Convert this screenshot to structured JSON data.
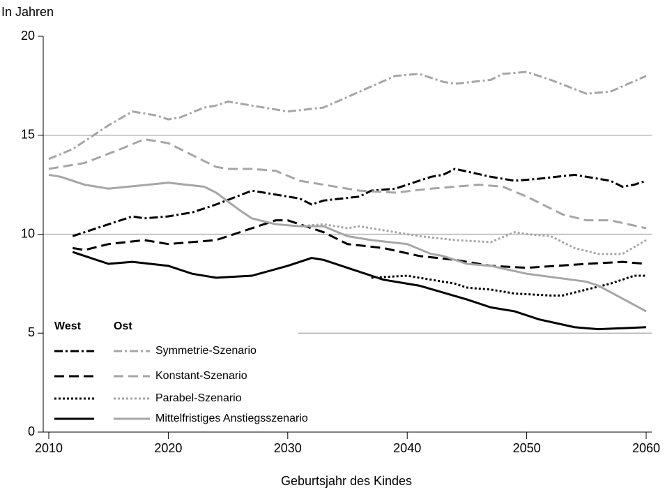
{
  "chart_data": {
    "type": "line",
    "y_label": "In Jahren",
    "x_label": "Geburtsjahr des Kindes",
    "xlim": [
      2010,
      2060
    ],
    "ylim": [
      0,
      20
    ],
    "xticks": [
      2010,
      2020,
      2030,
      2040,
      2050,
      2060
    ],
    "yticks": [
      0,
      5,
      10,
      15,
      20
    ],
    "grid": true,
    "legend_headers": [
      "West",
      "Ost"
    ],
    "series": [
      {
        "name": "Symmetrie-Szenario",
        "lines": [
          {
            "color": "#000000",
            "dash": "dash-dot",
            "x": [
              2012,
              2015,
              2017,
              2018,
              2020,
              2022,
              2024,
              2027,
              2029,
              2031,
              2032,
              2033,
              2036,
              2037,
              2039,
              2042,
              2043,
              2044,
              2047,
              2049,
              2051,
              2054,
              2057,
              2058,
              2059,
              2060
            ],
            "values": [
              9.9,
              10.5,
              10.9,
              10.8,
              10.9,
              11.1,
              11.5,
              12.2,
              12.0,
              11.8,
              11.5,
              11.7,
              11.9,
              12.2,
              12.3,
              12.9,
              13.0,
              13.3,
              12.9,
              12.7,
              12.8,
              13.0,
              12.7,
              12.4,
              12.5,
              12.7
            ]
          },
          {
            "color": "#a6a6a6",
            "dash": "dash-dot",
            "x": [
              2010,
              2012,
              2015,
              2017,
              2019,
              2020,
              2021,
              2023,
              2024,
              2025,
              2030,
              2033,
              2036,
              2039,
              2041,
              2043,
              2044,
              2047,
              2048,
              2050,
              2052,
              2055,
              2057,
              2060
            ],
            "values": [
              13.8,
              14.3,
              15.5,
              16.2,
              16.0,
              15.8,
              15.9,
              16.4,
              16.5,
              16.7,
              16.2,
              16.4,
              17.2,
              18.0,
              18.1,
              17.7,
              17.6,
              17.8,
              18.1,
              18.2,
              17.8,
              17.1,
              17.2,
              18.0
            ]
          }
        ]
      },
      {
        "name": "Konstant-Szenario",
        "lines": [
          {
            "color": "#000000",
            "dash": "dash",
            "x": [
              2012,
              2013,
              2015,
              2018,
              2020,
              2024,
              2025,
              2027,
              2029,
              2030,
              2033,
              2035,
              2038,
              2041,
              2044,
              2047,
              2050,
              2055,
              2058,
              2060
            ],
            "values": [
              9.3,
              9.2,
              9.5,
              9.7,
              9.5,
              9.7,
              9.9,
              10.3,
              10.7,
              10.7,
              10.1,
              9.5,
              9.3,
              8.9,
              8.7,
              8.4,
              8.3,
              8.5,
              8.6,
              8.5
            ]
          },
          {
            "color": "#a6a6a6",
            "dash": "dash",
            "x": [
              2010,
              2013,
              2016,
              2018,
              2020,
              2022,
              2024,
              2025,
              2027,
              2029,
              2031,
              2033,
              2036,
              2039,
              2042,
              2046,
              2048,
              2050,
              2053,
              2055,
              2057,
              2060
            ],
            "values": [
              13.3,
              13.6,
              14.3,
              14.8,
              14.6,
              14.0,
              13.4,
              13.3,
              13.3,
              13.2,
              12.7,
              12.5,
              12.2,
              12.1,
              12.3,
              12.5,
              12.4,
              11.9,
              11.0,
              10.7,
              10.7,
              10.3
            ]
          }
        ]
      },
      {
        "name": "Parabel-Szenario",
        "lines": [
          {
            "color": "#000000",
            "dash": "dot",
            "x": [
              2037,
              2040,
              2042,
              2044,
              2045,
              2047,
              2049,
              2052,
              2053,
              2055,
              2057,
              2059,
              2060
            ],
            "values": [
              7.8,
              7.9,
              7.7,
              7.5,
              7.3,
              7.2,
              7.0,
              6.9,
              6.9,
              7.2,
              7.5,
              7.9,
              7.9
            ]
          },
          {
            "color": "#a6a6a6",
            "dash": "dot",
            "x": [
              2031,
              2033,
              2035,
              2036,
              2039,
              2041,
              2044,
              2047,
              2049,
              2050,
              2052,
              2054,
              2056,
              2058,
              2060
            ],
            "values": [
              10.4,
              10.5,
              10.3,
              10.4,
              10.1,
              9.9,
              9.7,
              9.6,
              10.1,
              10.0,
              9.9,
              9.3,
              9.0,
              9.0,
              9.7
            ]
          }
        ]
      },
      {
        "name": "Mittelfristiges Anstiegsszenario",
        "lines": [
          {
            "color": "#000000",
            "dash": "solid",
            "x": [
              2012,
              2015,
              2017,
              2020,
              2022,
              2024,
              2027,
              2030,
              2032,
              2033,
              2035,
              2038,
              2041,
              2045,
              2047,
              2049,
              2051,
              2054,
              2056,
              2060
            ],
            "values": [
              9.1,
              8.5,
              8.6,
              8.4,
              8.0,
              7.8,
              7.9,
              8.4,
              8.8,
              8.7,
              8.3,
              7.7,
              7.4,
              6.7,
              6.3,
              6.1,
              5.7,
              5.3,
              5.2,
              5.3
            ]
          },
          {
            "color": "#a6a6a6",
            "dash": "solid",
            "x": [
              2010,
              2011,
              2013,
              2015,
              2020,
              2023,
              2024,
              2026,
              2027,
              2029,
              2031,
              2033,
              2035,
              2037,
              2040,
              2042,
              2043,
              2045,
              2047,
              2050,
              2055,
              2056,
              2060
            ],
            "values": [
              13.0,
              12.9,
              12.5,
              12.3,
              12.6,
              12.4,
              12.1,
              11.2,
              10.8,
              10.5,
              10.4,
              10.4,
              9.9,
              9.7,
              9.5,
              9.0,
              8.9,
              8.5,
              8.4,
              8.0,
              7.6,
              7.4,
              6.1
            ]
          }
        ]
      }
    ]
  }
}
